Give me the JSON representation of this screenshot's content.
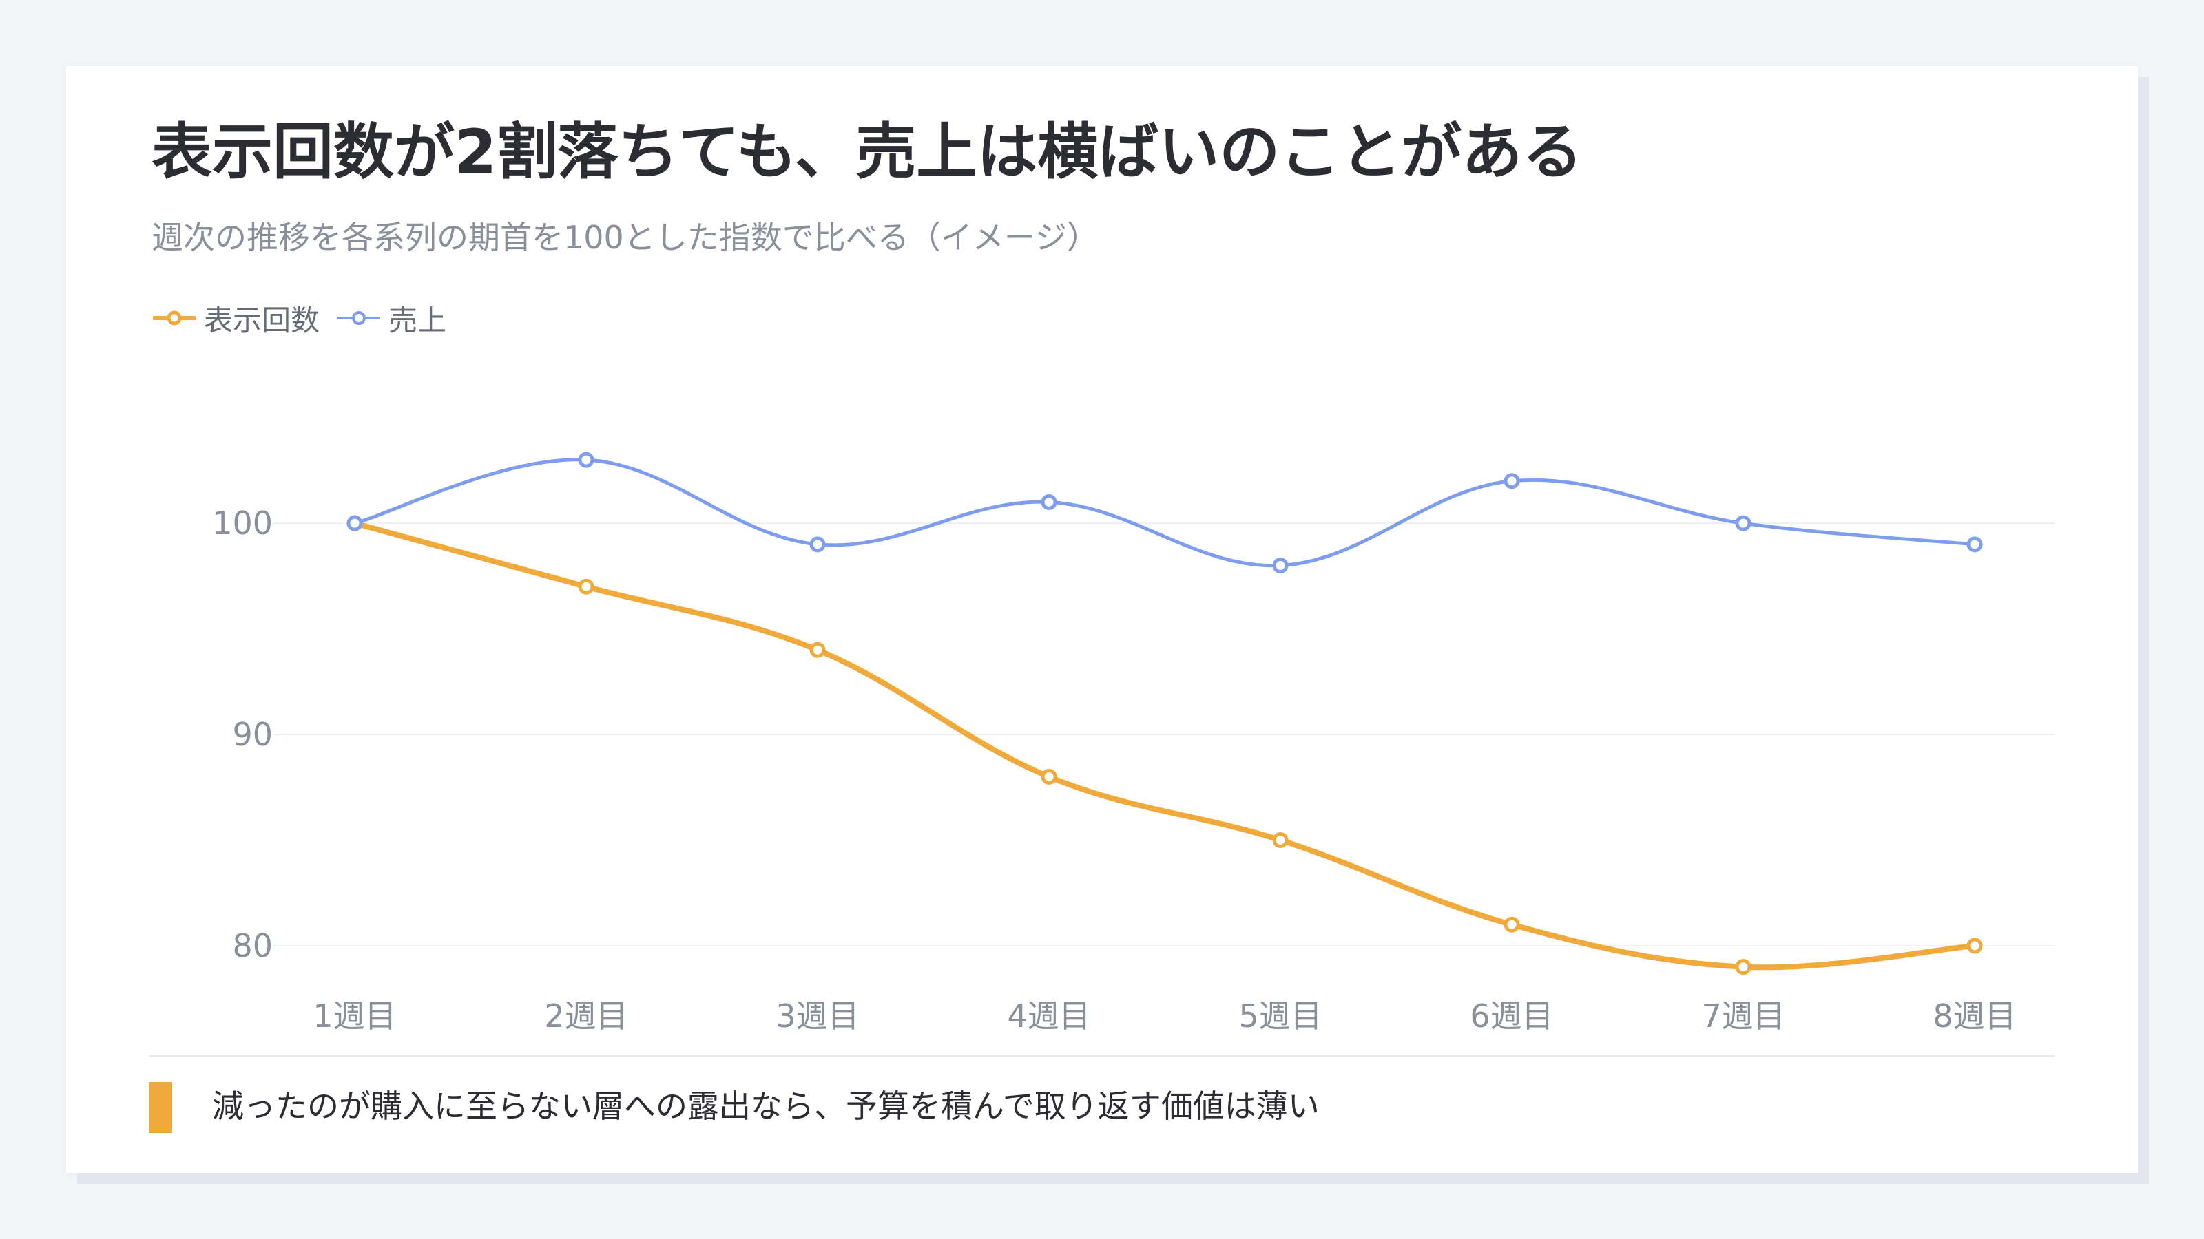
{
  "header": {
    "title": "表示回数が2割落ちても、売上は横ばいのことがある",
    "subtitle": "週次の推移を各系列の期首を100とした指数で比べる（イメージ）"
  },
  "footer": {
    "note": "減ったのが購入に至らない層への露出なら、予算を積んで取り返す価値は薄い",
    "marker_color": "#f0a93b"
  },
  "chart_data": {
    "type": "line",
    "categories": [
      "1週目",
      "2週目",
      "3週目",
      "4週目",
      "5週目",
      "6週目",
      "7週目",
      "8週目"
    ],
    "series": [
      {
        "name": "表示回数",
        "color": "#f0a93b",
        "values": [
          100,
          97,
          94,
          88,
          85,
          81,
          79,
          80
        ]
      },
      {
        "name": "売上",
        "color": "#7f9df0",
        "values": [
          100,
          103,
          99,
          101,
          98,
          102,
          100,
          99
        ]
      }
    ],
    "yticks": [
      80,
      90,
      100
    ],
    "ylim": [
      77,
      106
    ],
    "grid": true,
    "legend": "top-left",
    "title": "表示回数が2割落ちても、売上は横ばいのことがある",
    "xlabel": "",
    "ylabel": ""
  }
}
